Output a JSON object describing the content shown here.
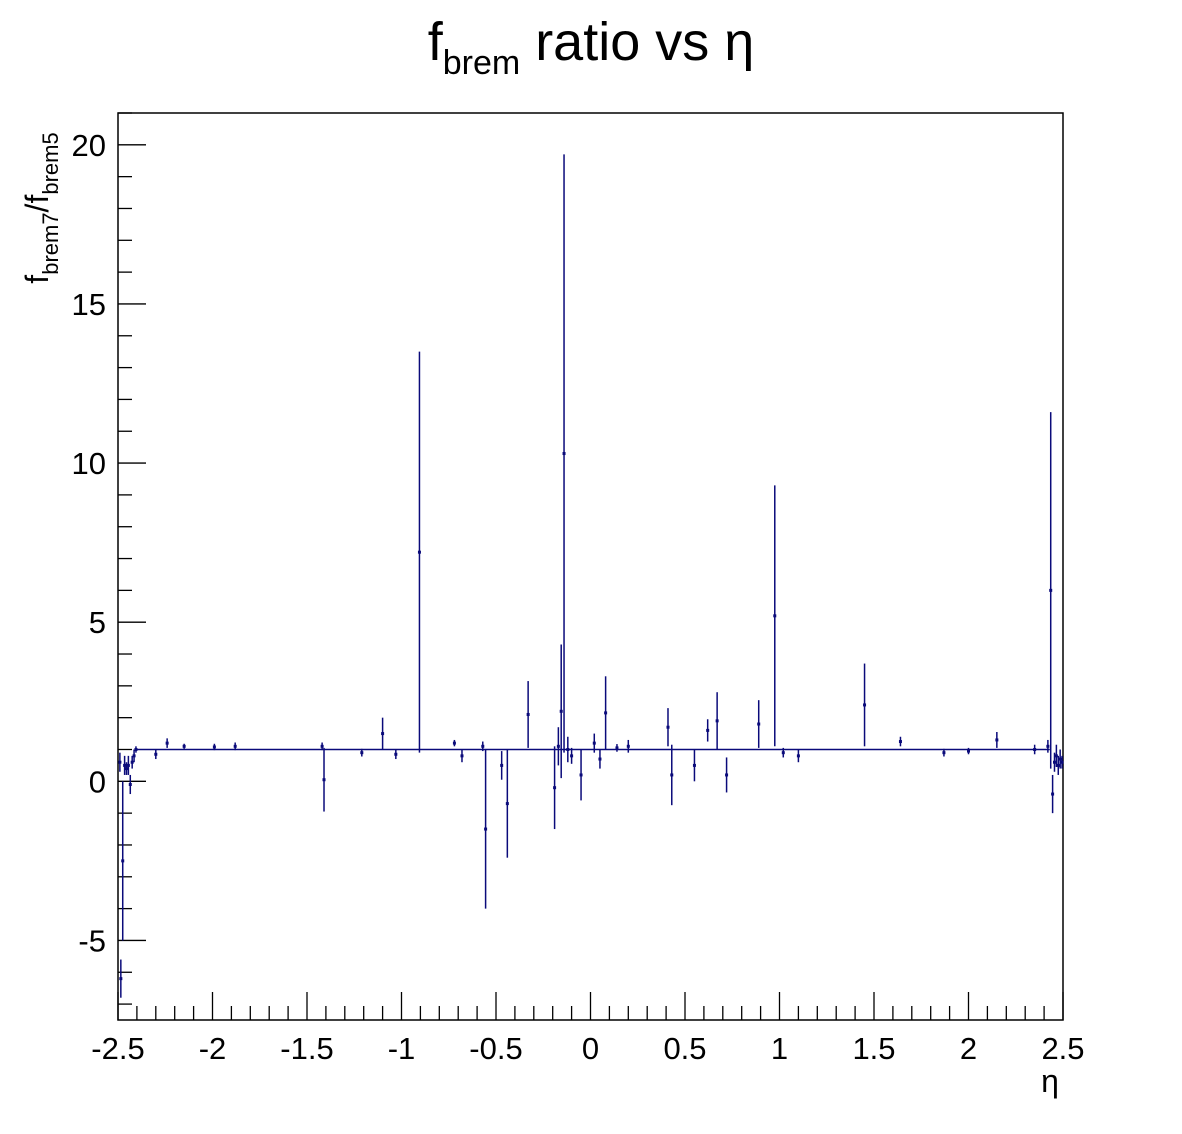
{
  "chart_data": {
    "type": "scatter",
    "title": {
      "main": "f",
      "sub": "brem",
      "rest": " ratio vs η"
    },
    "xlabel": "η",
    "ylabel": {
      "p1": "f",
      "s1": "brem7",
      "p2": "/f",
      "s2": "brem5"
    },
    "xlim": [
      -2.5,
      2.5
    ],
    "ylim": [
      -7.5,
      21
    ],
    "x_ticks": [
      "-2.5",
      "-2",
      "-1.5",
      "-1",
      "-0.5",
      "0",
      "0.5",
      "1",
      "1.5",
      "2",
      "2.5"
    ],
    "y_ticks": [
      "-5",
      "0",
      "5",
      "10",
      "15",
      "20"
    ],
    "marker_color": "#0a0a7a",
    "grid": false,
    "baseline": 1.0,
    "series": [
      {
        "points": [
          {
            "x": -2.49,
            "y": 0.6,
            "e": 0.3
          },
          {
            "x": -2.485,
            "y": -6.2,
            "e": 0.6
          },
          {
            "x": -2.475,
            "y": -2.5,
            "e": 2.5
          },
          {
            "x": -2.465,
            "y": 0.5,
            "e": 0.3
          },
          {
            "x": -2.455,
            "y": 0.4,
            "e": 0.2
          },
          {
            "x": -2.445,
            "y": 0.5,
            "e": 0.3
          },
          {
            "x": -2.435,
            "y": -0.1,
            "e": 0.3
          },
          {
            "x": -2.425,
            "y": 0.6,
            "e": 0.2
          },
          {
            "x": -2.415,
            "y": 0.8,
            "e": 0.2
          },
          {
            "x": -2.405,
            "y": 1.0,
            "e": 0.1
          },
          {
            "x": -2.3,
            "y": 0.85,
            "e": 0.15
          },
          {
            "x": -2.24,
            "y": 1.2,
            "e": 0.15
          },
          {
            "x": -2.15,
            "y": 1.1,
            "e": 0.08
          },
          {
            "x": -1.99,
            "y": 1.08,
            "e": 0.1
          },
          {
            "x": -1.88,
            "y": 1.1,
            "e": 0.12
          },
          {
            "x": -1.42,
            "y": 1.1,
            "e": 0.12
          },
          {
            "x": -1.41,
            "y": 0.05,
            "e": 1.0
          },
          {
            "x": -1.21,
            "y": 0.9,
            "e": 0.12
          },
          {
            "x": -1.1,
            "y": 1.5,
            "e": 0.5
          },
          {
            "x": -1.03,
            "y": 0.85,
            "e": 0.15
          },
          {
            "x": -0.905,
            "y": 7.2,
            "e": 6.3
          },
          {
            "x": -0.72,
            "y": 1.2,
            "e": 0.1
          },
          {
            "x": -0.68,
            "y": 0.8,
            "e": 0.2
          },
          {
            "x": -0.57,
            "y": 1.1,
            "e": 0.15
          },
          {
            "x": -0.555,
            "y": -1.5,
            "e": 2.5
          },
          {
            "x": -0.47,
            "y": 0.5,
            "e": 0.45
          },
          {
            "x": -0.44,
            "y": -0.7,
            "e": 1.7
          },
          {
            "x": -0.33,
            "y": 2.1,
            "e": 1.05
          },
          {
            "x": -0.19,
            "y": -0.2,
            "e": 1.3
          },
          {
            "x": -0.17,
            "y": 1.1,
            "e": 0.6
          },
          {
            "x": -0.155,
            "y": 2.2,
            "e": 2.1
          },
          {
            "x": -0.14,
            "y": 10.3,
            "e": 9.4
          },
          {
            "x": -0.12,
            "y": 1.0,
            "e": 0.4
          },
          {
            "x": -0.1,
            "y": 0.8,
            "e": 0.25
          },
          {
            "x": -0.05,
            "y": 0.2,
            "e": 0.8
          },
          {
            "x": 0.02,
            "y": 1.2,
            "e": 0.3
          },
          {
            "x": 0.05,
            "y": 0.7,
            "e": 0.3
          },
          {
            "x": 0.08,
            "y": 2.15,
            "e": 1.15
          },
          {
            "x": 0.14,
            "y": 1.05,
            "e": 0.12
          },
          {
            "x": 0.2,
            "y": 1.1,
            "e": 0.2
          },
          {
            "x": 0.41,
            "y": 1.7,
            "e": 0.6
          },
          {
            "x": 0.43,
            "y": 0.2,
            "e": 0.95
          },
          {
            "x": 0.55,
            "y": 0.5,
            "e": 0.5
          },
          {
            "x": 0.62,
            "y": 1.6,
            "e": 0.35
          },
          {
            "x": 0.67,
            "y": 1.9,
            "e": 0.9
          },
          {
            "x": 0.72,
            "y": 0.2,
            "e": 0.55
          },
          {
            "x": 0.89,
            "y": 1.8,
            "e": 0.75
          },
          {
            "x": 0.975,
            "y": 5.2,
            "e": 4.1
          },
          {
            "x": 1.02,
            "y": 0.9,
            "e": 0.15
          },
          {
            "x": 1.1,
            "y": 0.8,
            "e": 0.2
          },
          {
            "x": 1.45,
            "y": 2.4,
            "e": 1.3
          },
          {
            "x": 1.64,
            "y": 1.25,
            "e": 0.15
          },
          {
            "x": 1.87,
            "y": 0.9,
            "e": 0.12
          },
          {
            "x": 2.0,
            "y": 0.95,
            "e": 0.1
          },
          {
            "x": 2.15,
            "y": 1.3,
            "e": 0.25
          },
          {
            "x": 2.35,
            "y": 1.0,
            "e": 0.15
          },
          {
            "x": 2.42,
            "y": 1.1,
            "e": 0.2
          },
          {
            "x": 2.435,
            "y": 6.0,
            "e": 5.6
          },
          {
            "x": 2.445,
            "y": -0.4,
            "e": 0.6
          },
          {
            "x": 2.455,
            "y": 0.6,
            "e": 0.3
          },
          {
            "x": 2.465,
            "y": 0.8,
            "e": 0.35
          },
          {
            "x": 2.475,
            "y": 0.5,
            "e": 0.3
          },
          {
            "x": 2.485,
            "y": 0.7,
            "e": 0.3
          },
          {
            "x": 2.495,
            "y": 0.6,
            "e": 0.2
          }
        ]
      }
    ]
  }
}
